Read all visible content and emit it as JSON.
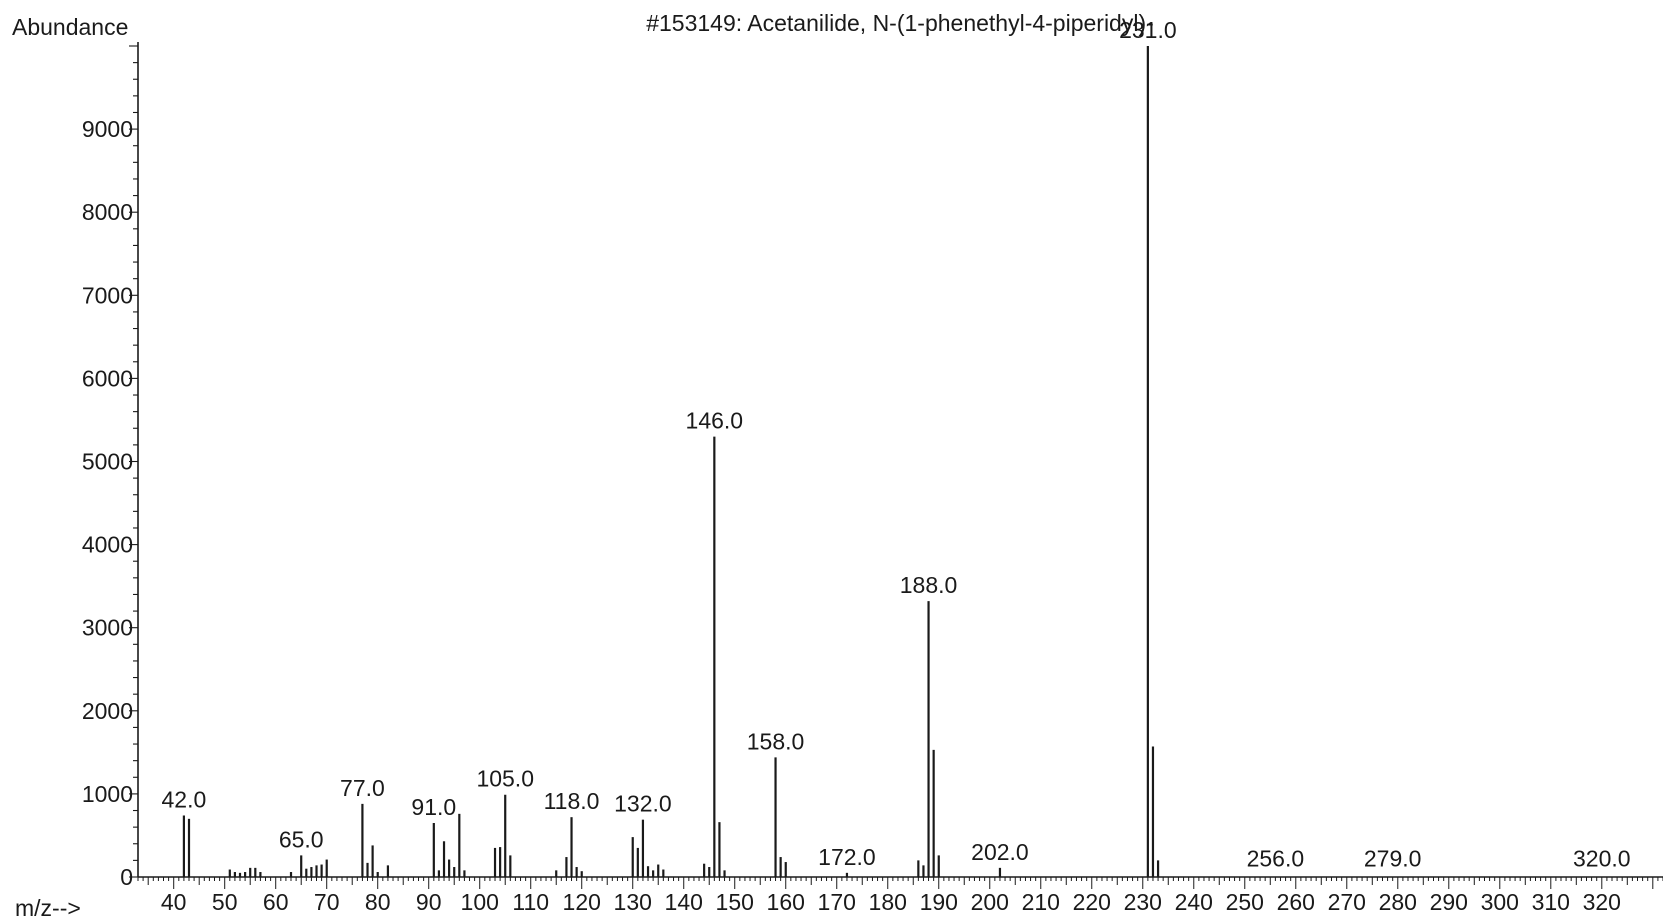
{
  "chart_data": {
    "type": "bar",
    "title": "#153149: Acetanilide, N-(1-phenethyl-4-piperidyl)-",
    "ylabel": "Abundance",
    "xlabel": "m/z-->",
    "xlim": [
      33,
      332
    ],
    "ylim": [
      0,
      10000
    ],
    "x_ticks": [
      40,
      50,
      60,
      70,
      80,
      90,
      100,
      110,
      120,
      130,
      140,
      150,
      160,
      170,
      180,
      190,
      200,
      210,
      220,
      230,
      240,
      250,
      260,
      270,
      280,
      290,
      300,
      310,
      320
    ],
    "y_ticks": [
      0,
      1000,
      2000,
      3000,
      4000,
      5000,
      6000,
      7000,
      8000,
      9000
    ],
    "peaks": [
      {
        "mz": 42,
        "abundance": 740
      },
      {
        "mz": 43,
        "abundance": 700
      },
      {
        "mz": 51,
        "abundance": 90
      },
      {
        "mz": 52,
        "abundance": 60
      },
      {
        "mz": 53,
        "abundance": 50
      },
      {
        "mz": 54,
        "abundance": 60
      },
      {
        "mz": 55,
        "abundance": 110
      },
      {
        "mz": 56,
        "abundance": 110
      },
      {
        "mz": 57,
        "abundance": 60
      },
      {
        "mz": 63,
        "abundance": 60
      },
      {
        "mz": 65,
        "abundance": 260
      },
      {
        "mz": 66,
        "abundance": 100
      },
      {
        "mz": 67,
        "abundance": 120
      },
      {
        "mz": 68,
        "abundance": 140
      },
      {
        "mz": 69,
        "abundance": 150
      },
      {
        "mz": 70,
        "abundance": 210
      },
      {
        "mz": 77,
        "abundance": 880
      },
      {
        "mz": 78,
        "abundance": 170
      },
      {
        "mz": 79,
        "abundance": 380
      },
      {
        "mz": 80,
        "abundance": 60
      },
      {
        "mz": 82,
        "abundance": 140
      },
      {
        "mz": 91,
        "abundance": 650
      },
      {
        "mz": 92,
        "abundance": 80
      },
      {
        "mz": 93,
        "abundance": 430
      },
      {
        "mz": 94,
        "abundance": 210
      },
      {
        "mz": 95,
        "abundance": 120
      },
      {
        "mz": 96,
        "abundance": 760
      },
      {
        "mz": 97,
        "abundance": 80
      },
      {
        "mz": 103,
        "abundance": 350
      },
      {
        "mz": 104,
        "abundance": 360
      },
      {
        "mz": 105,
        "abundance": 990
      },
      {
        "mz": 106,
        "abundance": 260
      },
      {
        "mz": 115,
        "abundance": 80
      },
      {
        "mz": 117,
        "abundance": 240
      },
      {
        "mz": 118,
        "abundance": 720
      },
      {
        "mz": 119,
        "abundance": 120
      },
      {
        "mz": 120,
        "abundance": 70
      },
      {
        "mz": 130,
        "abundance": 480
      },
      {
        "mz": 131,
        "abundance": 350
      },
      {
        "mz": 132,
        "abundance": 690
      },
      {
        "mz": 133,
        "abundance": 130
      },
      {
        "mz": 134,
        "abundance": 80
      },
      {
        "mz": 135,
        "abundance": 150
      },
      {
        "mz": 136,
        "abundance": 90
      },
      {
        "mz": 144,
        "abundance": 160
      },
      {
        "mz": 145,
        "abundance": 120
      },
      {
        "mz": 146,
        "abundance": 5300
      },
      {
        "mz": 147,
        "abundance": 660
      },
      {
        "mz": 148,
        "abundance": 80
      },
      {
        "mz": 158,
        "abundance": 1440
      },
      {
        "mz": 159,
        "abundance": 240
      },
      {
        "mz": 160,
        "abundance": 180
      },
      {
        "mz": 172,
        "abundance": 50
      },
      {
        "mz": 186,
        "abundance": 200
      },
      {
        "mz": 187,
        "abundance": 140
      },
      {
        "mz": 188,
        "abundance": 3320
      },
      {
        "mz": 189,
        "abundance": 1530
      },
      {
        "mz": 190,
        "abundance": 260
      },
      {
        "mz": 202,
        "abundance": 110
      },
      {
        "mz": 231,
        "abundance": 10000
      },
      {
        "mz": 232,
        "abundance": 1570
      },
      {
        "mz": 233,
        "abundance": 200
      }
    ],
    "peak_labels": [
      {
        "mz": 42,
        "abundance": 740,
        "text": "42.0"
      },
      {
        "mz": 65,
        "abundance": 260,
        "text": "65.0"
      },
      {
        "mz": 77,
        "abundance": 880,
        "text": "77.0"
      },
      {
        "mz": 91,
        "abundance": 650,
        "text": "91.0"
      },
      {
        "mz": 105,
        "abundance": 990,
        "text": "105.0"
      },
      {
        "mz": 118,
        "abundance": 720,
        "text": "118.0"
      },
      {
        "mz": 132,
        "abundance": 690,
        "text": "132.0"
      },
      {
        "mz": 146,
        "abundance": 5300,
        "text": "146.0"
      },
      {
        "mz": 158,
        "abundance": 1440,
        "text": "158.0"
      },
      {
        "mz": 172,
        "abundance": 50,
        "text": "172.0"
      },
      {
        "mz": 188,
        "abundance": 3320,
        "text": "188.0"
      },
      {
        "mz": 202,
        "abundance": 110,
        "text": "202.0"
      },
      {
        "mz": 231,
        "abundance": 10000,
        "text": "231.0"
      },
      {
        "mz": 256,
        "abundance": 30,
        "text": "256.0"
      },
      {
        "mz": 279,
        "abundance": 30,
        "text": "279.0"
      },
      {
        "mz": 320,
        "abundance": 30,
        "text": "320.0"
      }
    ],
    "grid": false,
    "legend": "none"
  },
  "colors": {
    "ink": "#1a1a1a",
    "background": "#ffffff"
  }
}
